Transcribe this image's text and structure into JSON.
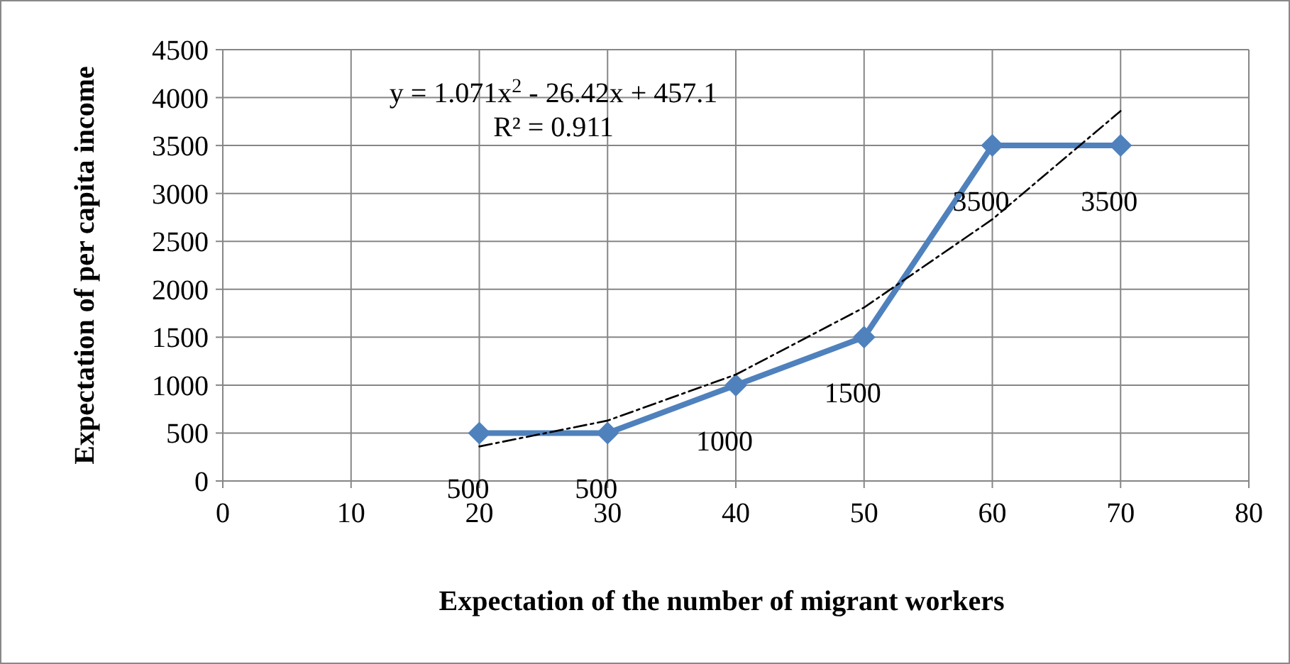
{
  "chart_data": {
    "type": "line",
    "xlabel": "Expectation of the number of migrant workers",
    "ylabel": "Expectation of per capita income",
    "x": [
      20,
      30,
      40,
      50,
      60,
      70
    ],
    "series": [
      {
        "color": "#4f81bd",
        "values": [
          500,
          500,
          1000,
          1500,
          3500,
          3500
        ],
        "marker": "diamond",
        "line_style": "solid",
        "data_labels": true
      },
      {
        "color": "#000000",
        "x": [
          20,
          30,
          40,
          50,
          60,
          70
        ],
        "values": [
          360,
          630,
          1110,
          1810,
          2730,
          3860
        ],
        "marker": "none",
        "line_style": "dashed"
      }
    ],
    "xlim": [
      0,
      80
    ],
    "xticks": [
      0,
      10,
      20,
      30,
      40,
      50,
      60,
      70,
      80
    ],
    "ylim": [
      0,
      4500
    ],
    "yticks": [
      0,
      500,
      1000,
      1500,
      2000,
      2500,
      3000,
      3500,
      4000,
      4500
    ],
    "grid": true,
    "annotations": [
      "y = 1.071x$^{2}$ - 26.42x + 457.1",
      "R² = 0.911"
    ]
  }
}
